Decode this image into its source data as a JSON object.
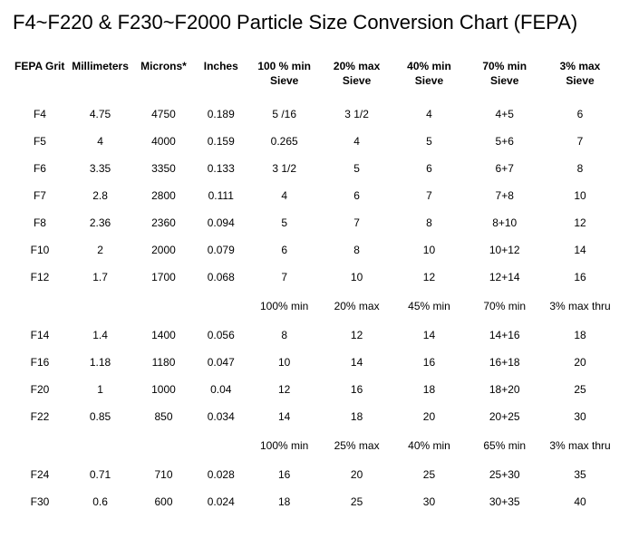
{
  "title": "F4~F220 & F230~F2000 Particle Size Conversion Chart (FEPA)",
  "columns": [
    "FEPA Grit",
    "Millimeters",
    "Microns*",
    "Inches",
    "100 % min Sieve",
    "20% max Sieve",
    "40% min Sieve",
    "70% min Sieve",
    "3% max Sieve"
  ],
  "rows": [
    {
      "type": "data",
      "cells": [
        "F4",
        "4.75",
        "4750",
        "0.189",
        "5 /16",
        "3 1/2",
        "4",
        "4+5",
        "6"
      ]
    },
    {
      "type": "data",
      "cells": [
        "F5",
        "4",
        "4000",
        "0.159",
        "0.265",
        "4",
        "5",
        "5+6",
        "7"
      ]
    },
    {
      "type": "data",
      "cells": [
        "F6",
        "3.35",
        "3350",
        "0.133",
        "3 1/2",
        "5",
        "6",
        "6+7",
        "8"
      ]
    },
    {
      "type": "data",
      "cells": [
        "F7",
        "2.8",
        "2800",
        "0.111",
        "4",
        "6",
        "7",
        "7+8",
        "10"
      ]
    },
    {
      "type": "data",
      "cells": [
        "F8",
        "2.36",
        "2360",
        "0.094",
        "5",
        "7",
        "8",
        "8+10",
        "12"
      ]
    },
    {
      "type": "data",
      "cells": [
        "F10",
        "2",
        "2000",
        "0.079",
        "6",
        "8",
        "10",
        "10+12",
        "14"
      ]
    },
    {
      "type": "data",
      "cells": [
        "F12",
        "1.7",
        "1700",
        "0.068",
        "7",
        "10",
        "12",
        "12+14",
        "16"
      ]
    },
    {
      "type": "sub",
      "cells": [
        "",
        "",
        "",
        "",
        "100% min",
        "20% max",
        "45% min",
        "70% min",
        "3% max thru"
      ]
    },
    {
      "type": "data",
      "cells": [
        "F14",
        "1.4",
        "1400",
        "0.056",
        "8",
        "12",
        "14",
        "14+16",
        "18"
      ]
    },
    {
      "type": "data",
      "cells": [
        "F16",
        "1.18",
        "1180",
        "0.047",
        "10",
        "14",
        "16",
        "16+18",
        "20"
      ]
    },
    {
      "type": "data",
      "cells": [
        "F20",
        "1",
        "1000",
        "0.04",
        "12",
        "16",
        "18",
        "18+20",
        "25"
      ]
    },
    {
      "type": "data",
      "cells": [
        "F22",
        "0.85",
        "850",
        "0.034",
        "14",
        "18",
        "20",
        "20+25",
        "30"
      ]
    },
    {
      "type": "sub",
      "cells": [
        "",
        "",
        "",
        "",
        "100% min",
        "25% max",
        "40% min",
        "65% min",
        "3% max thru"
      ]
    },
    {
      "type": "data",
      "cells": [
        "F24",
        "0.71",
        "710",
        "0.028",
        "16",
        "20",
        "25",
        "25+30",
        "35"
      ]
    },
    {
      "type": "data",
      "cells": [
        "F30",
        "0.6",
        "600",
        "0.024",
        "18",
        "25",
        "30",
        "30+35",
        "40"
      ]
    }
  ],
  "style": {
    "background_color": "#ffffff",
    "text_color": "#000000",
    "title_fontsize": 22,
    "header_fontsize": 12,
    "cell_fontsize": 12,
    "font_family": "Arial, Helvetica, sans-serif"
  }
}
